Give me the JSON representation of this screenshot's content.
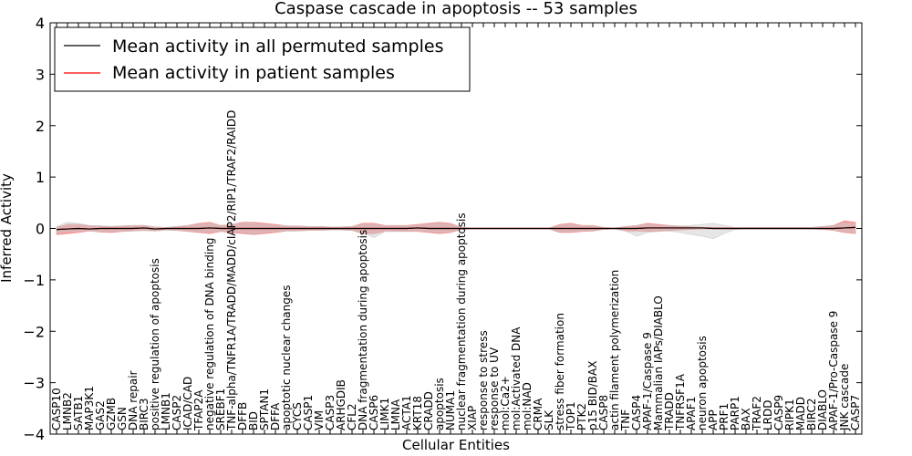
{
  "chart_data": {
    "type": "line",
    "title": "Caspase cascade in apoptosis -- 53 samples",
    "xlabel": "Cellular Entities",
    "ylabel": "Inferred Activity",
    "ylim": [
      -4,
      4
    ],
    "yticks": [
      -4,
      -3,
      -2,
      -1,
      0,
      1,
      2,
      3,
      4
    ],
    "ytick_labels": [
      "−4",
      "−3",
      "−2",
      "−1",
      "0",
      "1",
      "2",
      "3",
      "4"
    ],
    "legend_position": "top-left",
    "legend": [
      {
        "label": "Mean activity in all permuted samples",
        "color": "#000000"
      },
      {
        "label": "Mean activity in patient samples",
        "color": "#ff0000"
      }
    ],
    "colors": {
      "permuted_line": "#000000",
      "patient_line": "#ff0000",
      "patient_band": "#f08080",
      "permuted_band": "#c8c8c8"
    },
    "categories": [
      "CASP10",
      "LMNB2",
      "SATB1",
      "MAP3K1",
      "GAS2",
      "GZMB",
      "GSN",
      "DNA repair",
      "BIRC3",
      "positive regulation of apoptosis",
      "LMNB1",
      "CASP2",
      "ICAD/CAD",
      "TFAP2A",
      "negative regulation of DNA binding",
      "SREBF1",
      "TNF-alpha/TNFR1A/TRADD/MADD/cIAP2/RIP1/TRAF2/RAIDD",
      "DFFB",
      "BID",
      "SPTAN1",
      "DFFA",
      "apoptotic nuclear changes",
      "CYCS",
      "CASP1",
      "VIM",
      "CASP3",
      "ARHGDIB",
      "CFL2",
      "DNA fragmentation during apoptosis",
      "CASP6",
      "LIMK1",
      "LMNA",
      "ACTA1",
      "KRT18",
      "CRADD",
      "apoptosis",
      "NUMA1",
      "nuclear fragmentation during apoptosis",
      "XIAP",
      "response to stress",
      "response to UV",
      "mol:Ca2+",
      "mol:Activated DNA",
      "mol:NAD",
      "CRMA",
      "SLK",
      "stress fiber formation",
      "TOP1",
      "PTK2",
      "p15 BID/BAX",
      "CASP8",
      "actin filament polymerization",
      "TNF",
      "CASP4",
      "APAF-1/Caspase 9",
      "Mammalian IAPs/DIABLO",
      "TRADD",
      "TNFRSF1A",
      "APAF1",
      "neuron apoptosis",
      "APP",
      "PRF1",
      "PARP1",
      "BAX",
      "TRAF2",
      "LRDD",
      "CASP9",
      "RIPK1",
      "MADD",
      "BIRC2",
      "DIABLO",
      "APAF-1/Pro-Caspase 9",
      "JNK cascade",
      "CASP7"
    ],
    "series": [
      {
        "name": "Mean activity in all permuted samples",
        "values": [
          -0.02,
          -0.01,
          0,
          -0.01,
          0,
          0,
          0,
          0,
          0.01,
          -0.01,
          0,
          0,
          0,
          0,
          0.01,
          0,
          0,
          0,
          0,
          0,
          0,
          0,
          0,
          0,
          0,
          0,
          0,
          0,
          0,
          0,
          0,
          0,
          0,
          0.01,
          0,
          0,
          0,
          0,
          0,
          0,
          0,
          0,
          0,
          0,
          0,
          0,
          0,
          0,
          0,
          0,
          0,
          0,
          0,
          0,
          0.01,
          0.01,
          0.01,
          0.01,
          0.01,
          0.01,
          0,
          0,
          0,
          0,
          0,
          0,
          0,
          0,
          0,
          0,
          0,
          0,
          0.01,
          0.02
        ]
      },
      {
        "name": "Mean activity in patient samples",
        "values": [
          -0.02,
          -0.01,
          0,
          -0.01,
          0,
          0,
          0,
          0,
          0.01,
          -0.01,
          0,
          0,
          0,
          0,
          0.01,
          0,
          0,
          0,
          0,
          0,
          0,
          0,
          0,
          0,
          0,
          0,
          0,
          0,
          0,
          0,
          0,
          0,
          0,
          0.01,
          0,
          0,
          0,
          0,
          0,
          0,
          0,
          0,
          0,
          0,
          0,
          0,
          0,
          0,
          0,
          0,
          0,
          0,
          0,
          0,
          0.01,
          0.01,
          0.01,
          0.01,
          0.01,
          0.01,
          0,
          0,
          0,
          0,
          0,
          0,
          0,
          0,
          0,
          0,
          0,
          0,
          0.01,
          0.02
        ]
      }
    ],
    "bands": [
      {
        "name": "patient samples spread",
        "upper": [
          0.02,
          0.08,
          0.08,
          0.05,
          0.05,
          0.04,
          0.05,
          0.06,
          0.06,
          0.03,
          0.02,
          0.04,
          0.06,
          0.1,
          0.12,
          0.06,
          0.08,
          0.12,
          0.12,
          0.1,
          0.08,
          0.05,
          0.05,
          0.04,
          0.04,
          0.03,
          0.03,
          0.04,
          0.1,
          0.1,
          0.06,
          0.06,
          0.06,
          0.08,
          0.1,
          0.12,
          0.1,
          0.02,
          0.01,
          0.01,
          0.01,
          0.01,
          0.01,
          0.01,
          0.01,
          0.01,
          0.08,
          0.1,
          0.06,
          0.06,
          0.02,
          0.01,
          0.04,
          0.06,
          0.1,
          0.08,
          0.06,
          0.04,
          0.03,
          0.02,
          0.02,
          0.02,
          0.02,
          0.02,
          0.02,
          0.02,
          0.02,
          0.02,
          0.02,
          0.02,
          0.04,
          0.06,
          0.15,
          0.12
        ],
        "lower": [
          -0.12,
          -0.1,
          -0.08,
          -0.05,
          -0.07,
          -0.08,
          -0.06,
          -0.05,
          -0.04,
          -0.05,
          -0.03,
          -0.04,
          -0.06,
          -0.08,
          -0.1,
          -0.06,
          -0.08,
          -0.1,
          -0.12,
          -0.1,
          -0.08,
          -0.05,
          -0.05,
          -0.04,
          -0.04,
          -0.03,
          -0.03,
          -0.04,
          -0.1,
          -0.1,
          -0.06,
          -0.06,
          -0.06,
          -0.06,
          -0.08,
          -0.1,
          -0.08,
          -0.02,
          -0.01,
          -0.01,
          -0.01,
          -0.01,
          -0.01,
          -0.01,
          -0.01,
          -0.01,
          -0.08,
          -0.08,
          -0.06,
          -0.05,
          -0.02,
          -0.01,
          -0.05,
          -0.05,
          -0.06,
          -0.05,
          -0.04,
          -0.03,
          -0.02,
          -0.01,
          -0.01,
          -0.01,
          -0.01,
          -0.01,
          -0.01,
          -0.01,
          -0.01,
          -0.01,
          -0.01,
          -0.01,
          -0.02,
          -0.04,
          -0.08,
          -0.1
        ]
      },
      {
        "name": "permuted samples spread",
        "upper": [
          0.04,
          0.12,
          0.1,
          0.06,
          0.05,
          0.04,
          0.05,
          0.06,
          0.06,
          0.03,
          0.02,
          0.04,
          0.06,
          0.08,
          0.1,
          0.06,
          0.08,
          0.1,
          0.1,
          0.08,
          0.06,
          0.05,
          0.05,
          0.04,
          0.04,
          0.03,
          0.03,
          0.04,
          0.08,
          0.08,
          0.05,
          0.05,
          0.05,
          0.06,
          0.08,
          0.1,
          0.08,
          0.02,
          0.01,
          0.01,
          0.01,
          0.01,
          0.01,
          0.01,
          0.01,
          0.01,
          0.06,
          0.08,
          0.05,
          0.05,
          0.02,
          0.01,
          0.04,
          0.06,
          0.08,
          0.06,
          0.06,
          0.05,
          0.06,
          0.08,
          0.1,
          0.06,
          0.02,
          0.02,
          0.02,
          0.02,
          0.02,
          0.02,
          0.02,
          0.02,
          0.04,
          0.05,
          0.1,
          0.08
        ],
        "lower": [
          -0.08,
          -0.06,
          -0.05,
          -0.05,
          -0.06,
          -0.06,
          -0.05,
          -0.05,
          -0.04,
          -0.05,
          -0.03,
          -0.04,
          -0.05,
          -0.06,
          -0.08,
          -0.05,
          -0.06,
          -0.08,
          -0.1,
          -0.08,
          -0.06,
          -0.05,
          -0.05,
          -0.04,
          -0.04,
          -0.03,
          -0.03,
          -0.04,
          -0.08,
          -0.18,
          -0.06,
          -0.05,
          -0.05,
          -0.05,
          -0.06,
          -0.08,
          -0.06,
          -0.02,
          -0.01,
          -0.01,
          -0.01,
          -0.01,
          -0.01,
          -0.01,
          -0.01,
          -0.01,
          -0.06,
          -0.06,
          -0.05,
          -0.04,
          -0.02,
          -0.01,
          -0.05,
          -0.15,
          -0.08,
          -0.06,
          -0.05,
          -0.08,
          -0.12,
          -0.15,
          -0.2,
          -0.1,
          -0.02,
          -0.01,
          -0.01,
          -0.01,
          -0.01,
          -0.01,
          -0.01,
          -0.01,
          -0.02,
          -0.03,
          -0.06,
          -0.08
        ]
      }
    ]
  }
}
